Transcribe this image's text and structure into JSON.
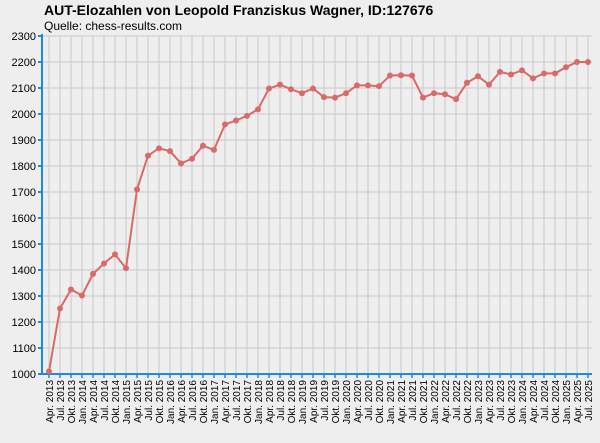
{
  "chart_data": {
    "type": "line",
    "title": "AUT-Elozahlen von Leopold Franziskus Wagner, ID:127676",
    "subtitle": "Quelle: chess-results.com",
    "xlabel": "",
    "ylabel": "",
    "ylim": [
      1000,
      2300
    ],
    "yticks": [
      1000,
      1100,
      1200,
      1300,
      1400,
      1500,
      1600,
      1700,
      1800,
      1900,
      2000,
      2100,
      2200,
      2300
    ],
    "grid": true,
    "legend": "none",
    "line_color": "#d96a6a",
    "x": [
      "Apr. 2013",
      "Jul. 2013",
      "Okt. 2013",
      "Jan. 2014",
      "Apr. 2014",
      "Jul. 2014",
      "Okt. 2014",
      "Jan. 2015",
      "Apr. 2015",
      "Jul. 2015",
      "Okt. 2015",
      "Jan. 2016",
      "Apr. 2016",
      "Jul. 2016",
      "Okt. 2016",
      "Jan. 2017",
      "Apr. 2017",
      "Jul. 2017",
      "Okt. 2017",
      "Jan. 2018",
      "Apr. 2018",
      "Jul. 2018",
      "Okt. 2018",
      "Jan. 2019",
      "Apr. 2019",
      "Jul. 2019",
      "Okt. 2019",
      "Jan. 2020",
      "Apr. 2020",
      "Jul. 2020",
      "Okt. 2020",
      "Jan. 2021",
      "Apr. 2021",
      "Jul. 2021",
      "Okt. 2021",
      "Jan. 2022",
      "Apr. 2022",
      "Jul. 2022",
      "Okt. 2022",
      "Jan. 2023",
      "Apr. 2023",
      "Jul. 2023",
      "Okt. 2023",
      "Jan. 2024",
      "Apr. 2024",
      "Jul. 2024",
      "Okt. 2024",
      "Jan. 2025",
      "Apr. 2025",
      "Jul. 2025"
    ],
    "values": [
      1010,
      1252,
      1325,
      1302,
      1385,
      1425,
      1460,
      1407,
      1710,
      1840,
      1868,
      1857,
      1810,
      1828,
      1878,
      1862,
      1960,
      1975,
      1993,
      2018,
      2098,
      2113,
      2095,
      2080,
      2098,
      2065,
      2063,
      2080,
      2110,
      2110,
      2107,
      2148,
      2149,
      2148,
      2063,
      2080,
      2076,
      2057,
      2120,
      2145,
      2113,
      2162,
      2152,
      2168,
      2137,
      2156,
      2156,
      2180,
      2200,
      2200
    ]
  }
}
